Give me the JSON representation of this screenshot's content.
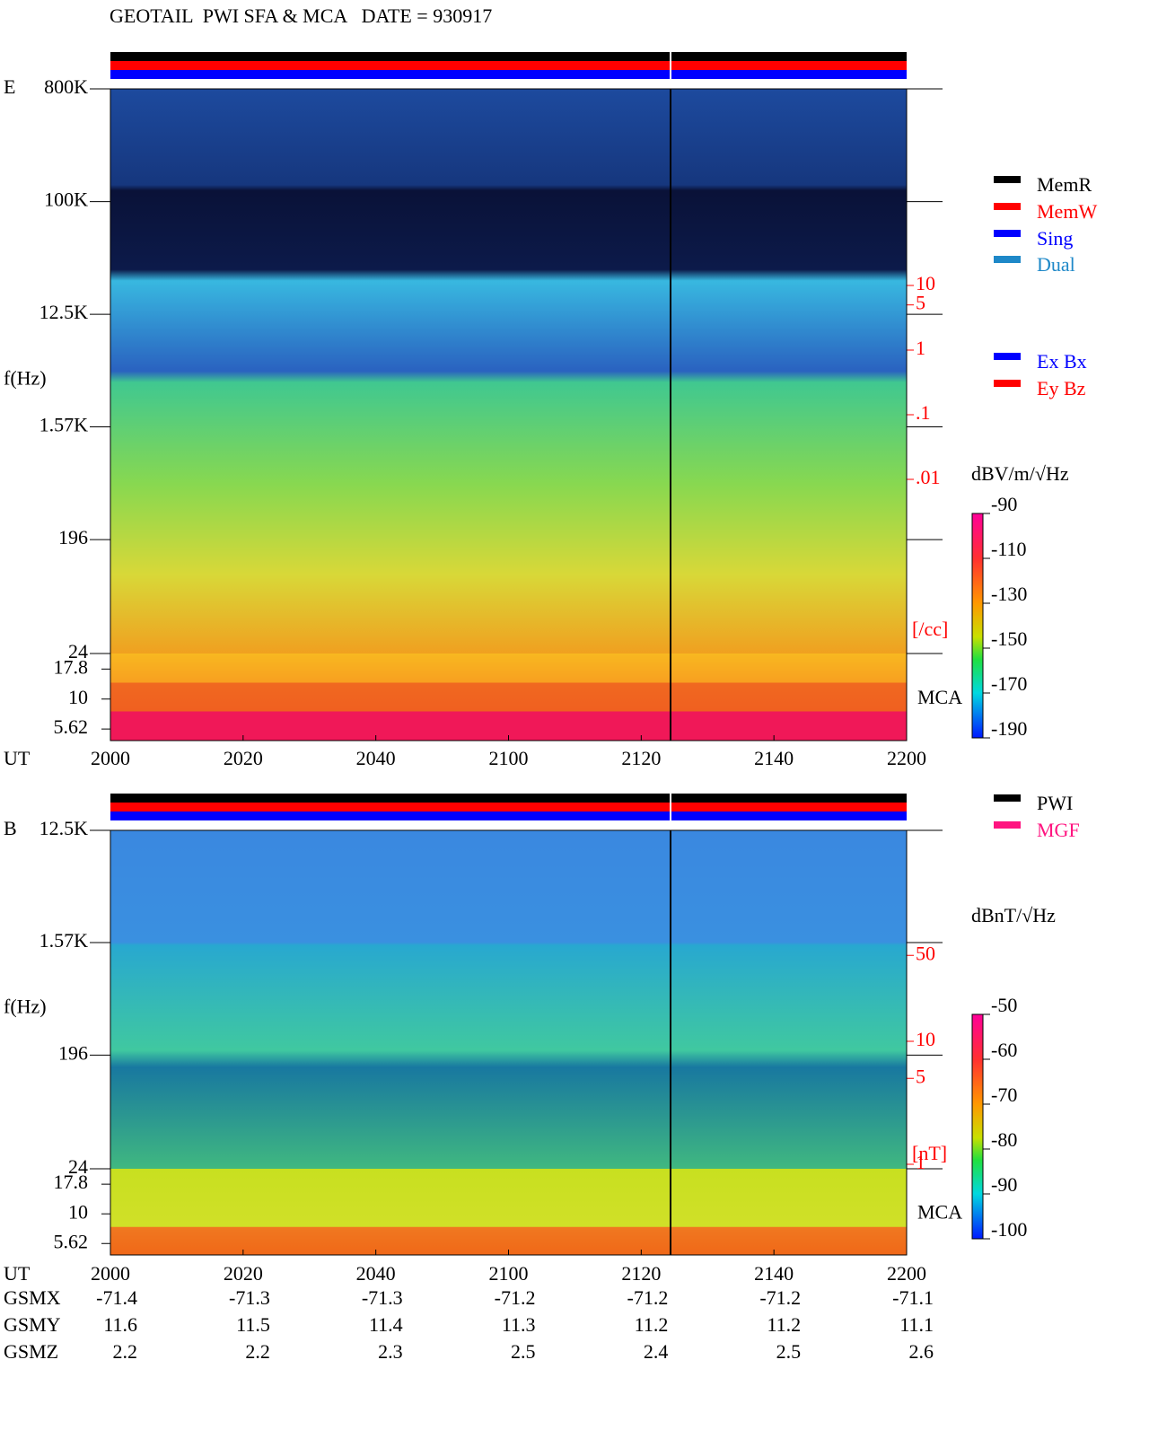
{
  "title": "GEOTAIL  PWI SFA & MCA   DATE = 930917",
  "chart_data": [
    {
      "type": "spectrogram",
      "panel_label": "E",
      "ylabel": "f(Hz)",
      "xlabel": "UT",
      "log_y": true,
      "ylim": [
        24,
        800000
      ],
      "yticks": [
        {
          "value": 800000,
          "label": "800K"
        },
        {
          "value": 100000,
          "label": "100K"
        },
        {
          "value": 12500,
          "label": "12.5K"
        },
        {
          "value": 1570,
          "label": "1.57K"
        },
        196,
        24
      ],
      "mca_label": "MCA",
      "mca_ylim": [
        4.5,
        24
      ],
      "mca_ticks": [
        17.8,
        10,
        5.62
      ],
      "categories": [
        "2000",
        "2020",
        "2040",
        "2100",
        "2120",
        "2140",
        "2200"
      ],
      "y2lim": [
        0.001,
        10
      ],
      "y2ticks": [
        10,
        5,
        1,
        {
          "value": 0.1,
          "label": ".1"
        },
        {
          "value": 0.01,
          "label": ".01"
        }
      ],
      "y2_unit": "[/cc]",
      "y2_color": "#ff0000",
      "colorbar": {
        "label": "dBV/m/√Hz",
        "lim": [
          -190,
          -90
        ],
        "ticks": [
          -90,
          -110,
          -130,
          -150,
          -170,
          -190
        ]
      },
      "legends": [
        [
          {
            "name": "MemR",
            "color": "#000000"
          },
          {
            "name": "MemW",
            "color": "#ff0000"
          },
          {
            "name": "Sing",
            "color": "#0000ff"
          },
          {
            "name": "Dual",
            "color": "#1e88c8"
          }
        ],
        [
          {
            "name": "Ex Bx",
            "color": "#0000ff"
          },
          {
            "name": "Ey Bz",
            "color": "#ff0000"
          }
        ]
      ]
    },
    {
      "type": "spectrogram",
      "panel_label": "B",
      "ylabel": "f(Hz)",
      "xlabel": "UT",
      "log_y": true,
      "ylim": [
        24,
        12500
      ],
      "yticks": [
        {
          "value": 12500,
          "label": "12.5K"
        },
        {
          "value": 1570,
          "label": "1.57K"
        },
        196,
        24
      ],
      "mca_label": "MCA",
      "mca_ylim": [
        4.5,
        24
      ],
      "mca_ticks": [
        17.8,
        10,
        5.62
      ],
      "categories": [
        "2000",
        "2020",
        "2040",
        "2100",
        "2120",
        "2140",
        "2200"
      ],
      "y2lim": [
        1,
        100
      ],
      "y2ticks": [
        50,
        10,
        5,
        1
      ],
      "y2_unit": "[nT]",
      "y2_color": "#ff0000",
      "colorbar": {
        "label": "dBnT/√Hz",
        "lim": [
          -100,
          -50
        ],
        "ticks": [
          -50,
          -60,
          -70,
          -80,
          -90,
          -100
        ]
      },
      "legends": [
        [
          {
            "name": "PWI",
            "color": "#000000"
          },
          {
            "name": "MGF",
            "color": "#ff1480"
          }
        ]
      ]
    }
  ],
  "orbit": {
    "label": "UT",
    "categories": [
      "2000",
      "2020",
      "2040",
      "2100",
      "2120",
      "2140",
      "2200"
    ],
    "rows": [
      {
        "name": "GSMX",
        "values": [
          -71.4,
          -71.3,
          -71.3,
          -71.2,
          -71.2,
          -71.2,
          -71.1
        ]
      },
      {
        "name": "GSMY",
        "values": [
          11.6,
          11.5,
          11.4,
          11.3,
          11.2,
          11.2,
          11.1
        ]
      },
      {
        "name": "GSMZ",
        "values": [
          2.2,
          2.2,
          2.3,
          2.5,
          2.4,
          2.5,
          2.6
        ]
      }
    ]
  }
}
